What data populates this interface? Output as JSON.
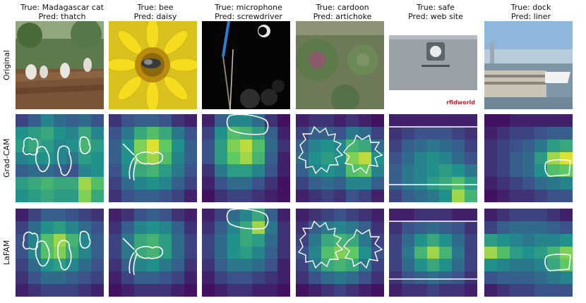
{
  "columns": [
    {
      "true_text": "True: Madagascar cat",
      "pred_text": "Pred: thatch"
    },
    {
      "true_text": "True: bee",
      "pred_text": "Pred: daisy"
    },
    {
      "true_text": "True: microphone",
      "pred_text": "Pred: screwdriver"
    },
    {
      "true_text": "True: cardoon",
      "pred_text": "Pred: artichoke"
    },
    {
      "true_text": "True: safe",
      "pred_text": "Pred: web site"
    },
    {
      "true_text": "True: dock",
      "pred_text": "Pred: liner"
    }
  ],
  "rows": [
    {
      "label": "Original"
    },
    {
      "label": "Grad-CAM"
    },
    {
      "label": "LaFAM"
    }
  ],
  "photo_texts": {
    "safe_brand": "rfidworld"
  },
  "heatmaps": {
    "gradcam": [
      [
        [
          0.2,
          0.3,
          0.45,
          0.35,
          0.3,
          0.35,
          0.25
        ],
        [
          0.5,
          0.55,
          0.6,
          0.5,
          0.45,
          0.6,
          0.45
        ],
        [
          0.55,
          0.6,
          0.55,
          0.45,
          0.5,
          0.65,
          0.55
        ],
        [
          0.45,
          0.5,
          0.5,
          0.45,
          0.4,
          0.55,
          0.5
        ],
        [
          0.3,
          0.35,
          0.35,
          0.3,
          0.25,
          0.45,
          0.5
        ],
        [
          0.55,
          0.6,
          0.65,
          0.6,
          0.6,
          0.85,
          0.7
        ],
        [
          0.5,
          0.55,
          0.6,
          0.55,
          0.55,
          0.8,
          0.6
        ]
      ],
      [
        [
          0.15,
          0.25,
          0.3,
          0.3,
          0.25,
          0.15,
          0.1
        ],
        [
          0.25,
          0.4,
          0.6,
          0.7,
          0.6,
          0.4,
          0.25
        ],
        [
          0.3,
          0.5,
          0.8,
          0.95,
          0.75,
          0.5,
          0.3
        ],
        [
          0.3,
          0.5,
          0.75,
          0.85,
          0.7,
          0.45,
          0.3
        ],
        [
          0.25,
          0.45,
          0.6,
          0.65,
          0.55,
          0.4,
          0.25
        ],
        [
          0.2,
          0.35,
          0.45,
          0.5,
          0.45,
          0.3,
          0.2
        ],
        [
          0.15,
          0.25,
          0.3,
          0.3,
          0.25,
          0.2,
          0.1
        ]
      ],
      [
        [
          0.1,
          0.3,
          0.45,
          0.45,
          0.35,
          0.15,
          0.05
        ],
        [
          0.2,
          0.5,
          0.7,
          0.65,
          0.55,
          0.3,
          0.1
        ],
        [
          0.25,
          0.55,
          0.8,
          0.9,
          0.7,
          0.35,
          0.15
        ],
        [
          0.25,
          0.55,
          0.75,
          0.85,
          0.65,
          0.3,
          0.1
        ],
        [
          0.15,
          0.4,
          0.55,
          0.55,
          0.45,
          0.25,
          0.1
        ],
        [
          0.1,
          0.25,
          0.35,
          0.35,
          0.25,
          0.15,
          0.05
        ],
        [
          0.05,
          0.15,
          0.2,
          0.2,
          0.15,
          0.1,
          0.05
        ]
      ],
      [
        [
          0.1,
          0.15,
          0.15,
          0.1,
          0.15,
          0.1,
          0.05
        ],
        [
          0.2,
          0.3,
          0.3,
          0.25,
          0.4,
          0.35,
          0.2
        ],
        [
          0.3,
          0.45,
          0.5,
          0.45,
          0.65,
          0.6,
          0.35
        ],
        [
          0.35,
          0.5,
          0.55,
          0.5,
          0.8,
          0.9,
          0.5
        ],
        [
          0.3,
          0.45,
          0.5,
          0.45,
          0.7,
          0.75,
          0.45
        ],
        [
          0.2,
          0.3,
          0.35,
          0.3,
          0.45,
          0.45,
          0.3
        ],
        [
          0.1,
          0.15,
          0.2,
          0.15,
          0.25,
          0.2,
          0.1
        ]
      ],
      [
        [
          0.1,
          0.1,
          0.1,
          0.1,
          0.1,
          0.1,
          0.1
        ],
        [
          0.15,
          0.2,
          0.25,
          0.25,
          0.25,
          0.2,
          0.15
        ],
        [
          0.2,
          0.3,
          0.35,
          0.4,
          0.35,
          0.3,
          0.2
        ],
        [
          0.25,
          0.35,
          0.45,
          0.5,
          0.45,
          0.35,
          0.25
        ],
        [
          0.3,
          0.4,
          0.45,
          0.5,
          0.55,
          0.5,
          0.4
        ],
        [
          0.3,
          0.4,
          0.45,
          0.55,
          0.6,
          0.7,
          0.55
        ],
        [
          0.2,
          0.3,
          0.35,
          0.4,
          0.5,
          0.85,
          0.65
        ]
      ],
      [
        [
          0.05,
          0.05,
          0.1,
          0.1,
          0.1,
          0.1,
          0.1
        ],
        [
          0.1,
          0.15,
          0.2,
          0.2,
          0.25,
          0.3,
          0.3
        ],
        [
          0.15,
          0.2,
          0.25,
          0.3,
          0.4,
          0.55,
          0.6
        ],
        [
          0.15,
          0.2,
          0.3,
          0.35,
          0.55,
          0.85,
          0.95
        ],
        [
          0.15,
          0.2,
          0.3,
          0.35,
          0.5,
          0.7,
          0.75
        ],
        [
          0.1,
          0.15,
          0.2,
          0.25,
          0.35,
          0.4,
          0.45
        ],
        [
          0.05,
          0.1,
          0.15,
          0.15,
          0.2,
          0.25,
          0.25
        ]
      ]
    ],
    "lafam": [
      [
        [
          0.1,
          0.2,
          0.3,
          0.3,
          0.25,
          0.2,
          0.15
        ],
        [
          0.2,
          0.35,
          0.5,
          0.55,
          0.45,
          0.35,
          0.25
        ],
        [
          0.25,
          0.45,
          0.7,
          0.85,
          0.65,
          0.45,
          0.3
        ],
        [
          0.25,
          0.45,
          0.7,
          0.8,
          0.6,
          0.45,
          0.3
        ],
        [
          0.2,
          0.35,
          0.5,
          0.55,
          0.45,
          0.35,
          0.25
        ],
        [
          0.15,
          0.25,
          0.35,
          0.35,
          0.3,
          0.25,
          0.2
        ],
        [
          0.1,
          0.15,
          0.2,
          0.2,
          0.2,
          0.15,
          0.1
        ]
      ],
      [
        [
          0.1,
          0.15,
          0.25,
          0.3,
          0.25,
          0.15,
          0.1
        ],
        [
          0.15,
          0.3,
          0.45,
          0.5,
          0.45,
          0.3,
          0.15
        ],
        [
          0.2,
          0.4,
          0.6,
          0.65,
          0.55,
          0.35,
          0.2
        ],
        [
          0.2,
          0.4,
          0.6,
          0.65,
          0.55,
          0.35,
          0.2
        ],
        [
          0.15,
          0.3,
          0.45,
          0.5,
          0.4,
          0.3,
          0.15
        ],
        [
          0.1,
          0.2,
          0.3,
          0.3,
          0.25,
          0.2,
          0.1
        ],
        [
          0.05,
          0.1,
          0.15,
          0.15,
          0.15,
          0.1,
          0.05
        ]
      ],
      [
        [
          0.1,
          0.2,
          0.35,
          0.45,
          0.6,
          0.3,
          0.1
        ],
        [
          0.15,
          0.3,
          0.45,
          0.6,
          0.85,
          0.4,
          0.15
        ],
        [
          0.2,
          0.35,
          0.5,
          0.6,
          0.55,
          0.35,
          0.15
        ],
        [
          0.2,
          0.35,
          0.5,
          0.55,
          0.45,
          0.3,
          0.15
        ],
        [
          0.15,
          0.3,
          0.4,
          0.4,
          0.35,
          0.25,
          0.1
        ],
        [
          0.1,
          0.2,
          0.25,
          0.25,
          0.2,
          0.15,
          0.1
        ],
        [
          0.05,
          0.1,
          0.15,
          0.15,
          0.1,
          0.1,
          0.05
        ]
      ],
      [
        [
          0.1,
          0.15,
          0.2,
          0.25,
          0.2,
          0.15,
          0.1
        ],
        [
          0.15,
          0.3,
          0.4,
          0.45,
          0.4,
          0.3,
          0.15
        ],
        [
          0.2,
          0.4,
          0.6,
          0.65,
          0.6,
          0.4,
          0.2
        ],
        [
          0.25,
          0.45,
          0.7,
          0.8,
          0.75,
          0.5,
          0.25
        ],
        [
          0.2,
          0.4,
          0.6,
          0.65,
          0.6,
          0.4,
          0.2
        ],
        [
          0.15,
          0.25,
          0.35,
          0.4,
          0.35,
          0.25,
          0.15
        ],
        [
          0.05,
          0.1,
          0.15,
          0.2,
          0.15,
          0.1,
          0.05
        ]
      ],
      [
        [
          0.1,
          0.1,
          0.15,
          0.15,
          0.15,
          0.1,
          0.1
        ],
        [
          0.15,
          0.25,
          0.3,
          0.35,
          0.3,
          0.25,
          0.15
        ],
        [
          0.2,
          0.35,
          0.5,
          0.6,
          0.5,
          0.35,
          0.2
        ],
        [
          0.2,
          0.4,
          0.65,
          0.85,
          0.65,
          0.4,
          0.2
        ],
        [
          0.2,
          0.35,
          0.5,
          0.6,
          0.5,
          0.35,
          0.2
        ],
        [
          0.15,
          0.25,
          0.3,
          0.35,
          0.3,
          0.25,
          0.15
        ],
        [
          0.1,
          0.15,
          0.15,
          0.2,
          0.15,
          0.15,
          0.1
        ]
      ],
      [
        [
          0.1,
          0.15,
          0.2,
          0.2,
          0.2,
          0.15,
          0.1
        ],
        [
          0.2,
          0.3,
          0.35,
          0.35,
          0.35,
          0.3,
          0.25
        ],
        [
          0.55,
          0.5,
          0.45,
          0.4,
          0.45,
          0.45,
          0.5
        ],
        [
          0.85,
          0.7,
          0.55,
          0.5,
          0.55,
          0.65,
          0.8
        ],
        [
          0.5,
          0.45,
          0.4,
          0.4,
          0.45,
          0.6,
          0.75
        ],
        [
          0.25,
          0.3,
          0.3,
          0.3,
          0.35,
          0.4,
          0.45
        ],
        [
          0.1,
          0.15,
          0.2,
          0.2,
          0.25,
          0.25,
          0.25
        ]
      ]
    ]
  }
}
